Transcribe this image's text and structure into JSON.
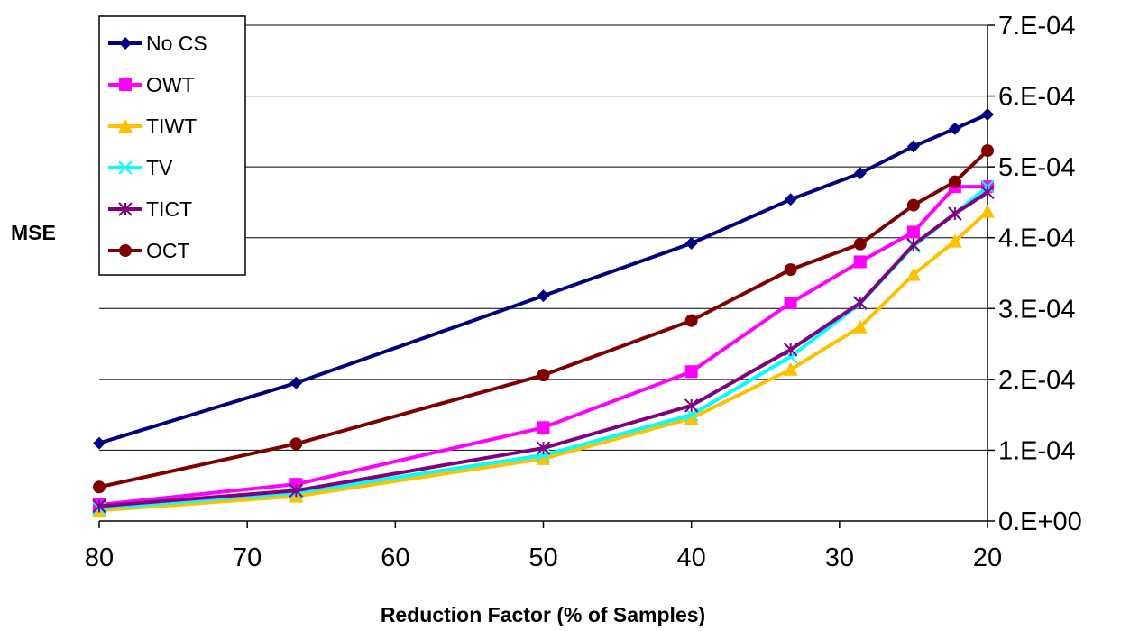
{
  "chart_data": {
    "type": "line",
    "title": "",
    "xlabel": "Reduction Factor (% of Samples)",
    "ylabel": "MSE",
    "x_reversed": true,
    "xlim": [
      80,
      20
    ],
    "ylim": [
      0,
      0.0007
    ],
    "x_ticks": [
      80,
      70,
      60,
      50,
      40,
      30,
      20
    ],
    "x_tick_labels": [
      "80",
      "70",
      "60",
      "50",
      "40",
      "30",
      "20"
    ],
    "y_ticks": [
      0,
      0.0001,
      0.0002,
      0.0003,
      0.0004,
      0.0005,
      0.0006,
      0.0007
    ],
    "y_tick_labels": [
      "0.E+00",
      "1.E-04",
      "2.E-04",
      "3.E-04",
      "4.E-04",
      "5.E-04",
      "6.E-04",
      "7.E-04"
    ],
    "y_axis_side": "right",
    "grid": "horizontal",
    "legend_position": "top-left",
    "x": [
      80,
      66.7,
      50,
      40,
      33.3,
      28.6,
      25,
      22.2,
      20
    ],
    "series": [
      {
        "name": "No CS",
        "color": "#000080",
        "marker": "diamond",
        "values": [
          0.00011,
          0.000195,
          0.000318,
          0.000392,
          0.000454,
          0.000491,
          0.000529,
          0.000554,
          0.000574
        ]
      },
      {
        "name": "OWT",
        "color": "#ff00ff",
        "marker": "square",
        "values": [
          2.3e-05,
          5.2e-05,
          0.000132,
          0.000211,
          0.000308,
          0.000366,
          0.000408,
          0.000472,
          0.000472
        ]
      },
      {
        "name": "TIWT",
        "color": "#ffc000",
        "marker": "triangle",
        "values": [
          1.5e-05,
          3.5e-05,
          8.8e-05,
          0.000145,
          0.000214,
          0.000274,
          0.000348,
          0.000395,
          0.000437
        ]
      },
      {
        "name": "TV",
        "color": "#00ffff",
        "marker": "x",
        "values": [
          1.8e-05,
          4e-05,
          9.3e-05,
          0.00015,
          0.000232,
          0.000307,
          0.000388,
          0.000434,
          0.000472
        ]
      },
      {
        "name": "TICT",
        "color": "#800080",
        "marker": "asterisk",
        "values": [
          2.1e-05,
          4.3e-05,
          0.000103,
          0.000163,
          0.000242,
          0.000308,
          0.00039,
          0.000434,
          0.000464
        ]
      },
      {
        "name": "OCT",
        "color": "#800000",
        "marker": "circle",
        "values": [
          4.8e-05,
          0.000109,
          0.000206,
          0.000283,
          0.000355,
          0.000391,
          0.000446,
          0.000479,
          0.000523
        ]
      }
    ]
  }
}
